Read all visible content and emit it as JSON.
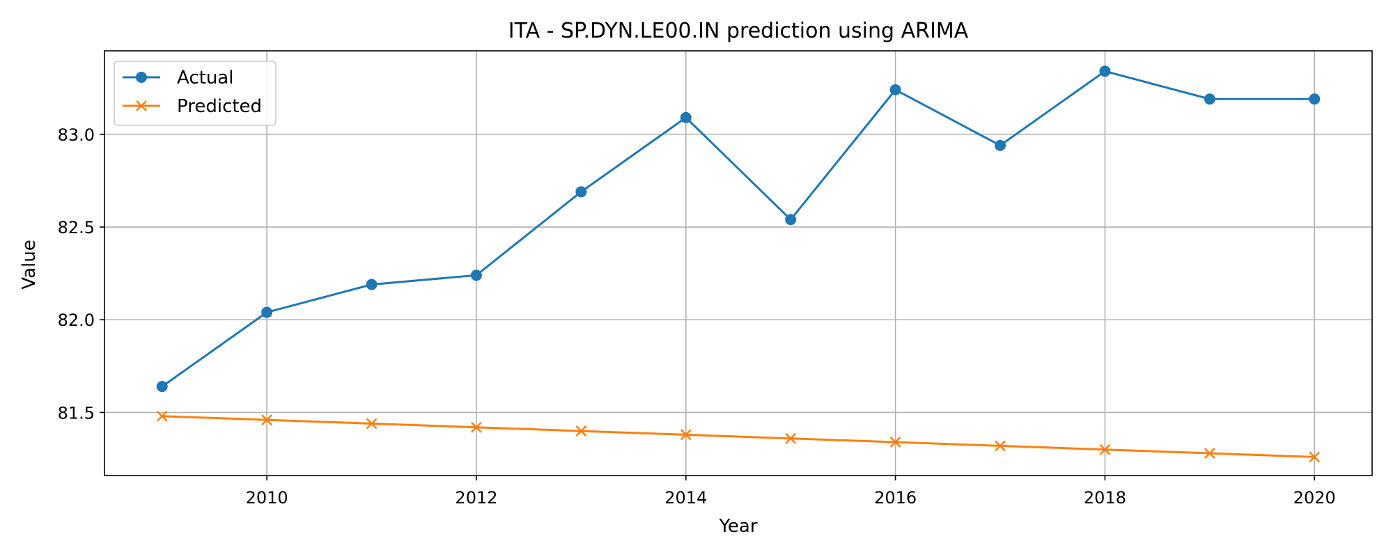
{
  "chart_data": {
    "type": "line",
    "title": "ITA - SP.DYN.LE00.IN prediction using ARIMA",
    "xlabel": "Year",
    "ylabel": "Value",
    "x": [
      2009,
      2010,
      2011,
      2012,
      2013,
      2014,
      2015,
      2016,
      2017,
      2018,
      2019,
      2020
    ],
    "xlim": [
      2008.45,
      2020.55
    ],
    "ylim": [
      81.16,
      83.45
    ],
    "xticks": [
      2010,
      2012,
      2014,
      2016,
      2018,
      2020
    ],
    "xtick_labels": [
      "2010",
      "2012",
      "2014",
      "2016",
      "2018",
      "2020"
    ],
    "yticks": [
      81.5,
      82.0,
      82.5,
      83.0
    ],
    "ytick_labels": [
      "81.5",
      "82.0",
      "82.5",
      "83.0"
    ],
    "grid": true,
    "legend_position": "top-left",
    "series": [
      {
        "name": "Actual",
        "marker": "circle",
        "color": "#1f77b4",
        "values": [
          81.64,
          82.04,
          82.19,
          82.24,
          82.69,
          83.09,
          82.54,
          83.24,
          82.94,
          83.34,
          83.19,
          83.19
        ]
      },
      {
        "name": "Predicted",
        "marker": "x",
        "color": "#ff7f0e",
        "values": [
          81.48,
          81.46,
          81.44,
          81.42,
          81.4,
          81.38,
          81.36,
          81.34,
          81.32,
          81.3,
          81.28,
          81.26
        ]
      }
    ]
  }
}
